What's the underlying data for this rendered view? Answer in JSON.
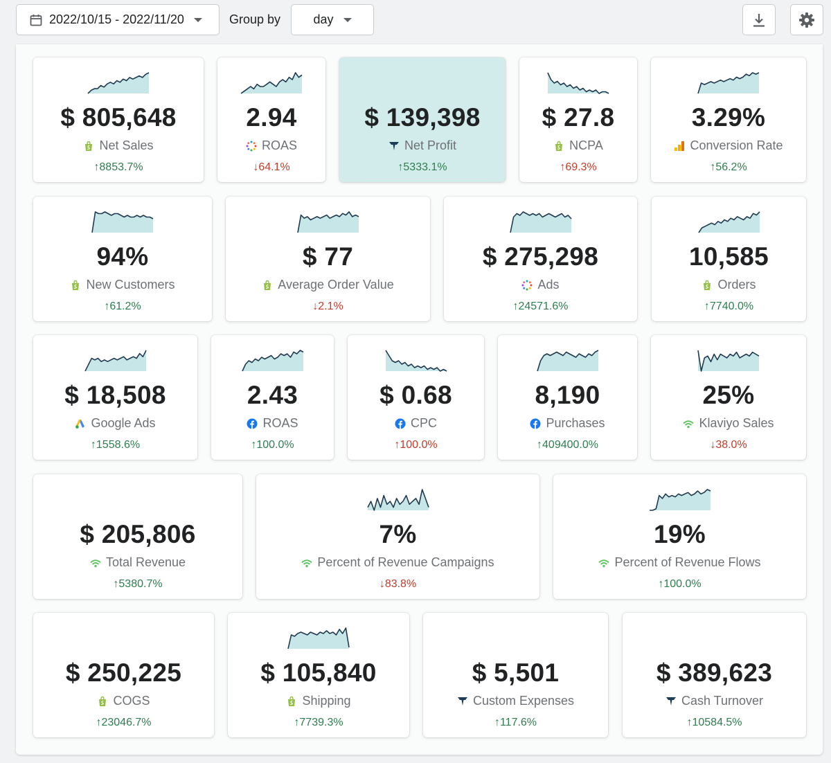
{
  "toolbar": {
    "date_range": "2022/10/15 - 2022/11/20",
    "group_by_label": "Group by",
    "group_by_value": "day",
    "download_icon": "download-icon",
    "settings_icon": "gear-icon"
  },
  "colors": {
    "positive": "#2e7d4f",
    "negative": "#c43b2a",
    "highlight": "#d1ecea",
    "spark_fill": "#c7e6e8",
    "spark_line": "#1f3a4f"
  },
  "cards": [
    {
      "value": "$ 805,648",
      "label": "Net Sales",
      "icon": "shopify-icon",
      "change": "↑8853.7%",
      "dir": "up",
      "spark": [
        2,
        4,
        5,
        5,
        7,
        6,
        8,
        9,
        8,
        10,
        9,
        11,
        10,
        12,
        11,
        12,
        13,
        12,
        14,
        15
      ],
      "highlight": false
    },
    {
      "value": "2.94",
      "label": "ROAS",
      "icon": "dots-ring-icon",
      "change": "↓64.1%",
      "dir": "down",
      "spark": [
        3,
        4,
        5,
        6,
        5,
        7,
        6,
        6,
        7,
        8,
        7,
        6,
        8,
        9,
        8,
        10,
        9,
        12,
        10,
        11
      ],
      "highlight": false
    },
    {
      "value": "$ 139,398",
      "label": "Net Profit",
      "icon": "triple-whale-icon",
      "change": "↑5333.1%",
      "dir": "up",
      "spark": [],
      "highlight": true
    },
    {
      "value": "$ 27.8",
      "label": "NCPA",
      "icon": "shopify-icon",
      "change": "↑69.3%",
      "dir": "down",
      "spark": [
        15,
        11,
        9,
        10,
        8,
        9,
        7,
        8,
        6,
        7,
        5,
        6,
        4,
        5,
        4,
        5,
        3,
        4,
        4,
        3
      ],
      "highlight": false
    },
    {
      "value": "3.29%",
      "label": "Conversion Rate",
      "icon": "bar-chart-icon",
      "change": "↑56.2%",
      "dir": "up",
      "spark": [
        2,
        9,
        8,
        9,
        10,
        9,
        10,
        11,
        10,
        11,
        12,
        11,
        13,
        12,
        13,
        15,
        14,
        16,
        15,
        16
      ],
      "highlight": false
    },
    {
      "value": "94%",
      "label": "New Customers",
      "icon": "shopify-icon",
      "change": "↑61.2%",
      "dir": "up",
      "spark": [
        2,
        14,
        13,
        13,
        14,
        13,
        12,
        13,
        13,
        12,
        11,
        12,
        11,
        11,
        12,
        11,
        12,
        11,
        11,
        10
      ],
      "highlight": false
    },
    {
      "value": "$ 77",
      "label": "Average Order Value",
      "icon": "shopify-icon",
      "change": "↓2.1%",
      "dir": "down",
      "spark": [
        2,
        13,
        11,
        12,
        10,
        11,
        12,
        11,
        12,
        13,
        11,
        12,
        13,
        12,
        14,
        13,
        15,
        12,
        13,
        12
      ],
      "highlight": false
    },
    {
      "value": "$ 275,298",
      "label": "Ads",
      "icon": "dots-ring-icon",
      "change": "↑24571.6%",
      "dir": "up",
      "spark": [
        2,
        11,
        13,
        12,
        14,
        13,
        12,
        13,
        12,
        13,
        11,
        12,
        13,
        12,
        11,
        12,
        13,
        11,
        12,
        10
      ],
      "highlight": false
    },
    {
      "value": "10,585",
      "label": "Orders",
      "icon": "shopify-icon",
      "change": "↑7740.0%",
      "dir": "up",
      "spark": [
        2,
        5,
        6,
        7,
        8,
        7,
        9,
        8,
        10,
        9,
        11,
        10,
        12,
        11,
        10,
        12,
        11,
        14,
        13,
        15
      ],
      "highlight": false
    },
    {
      "value": "$ 18,508",
      "label": "Google Ads",
      "icon": "google-ads-icon",
      "change": "↑1558.6%",
      "dir": "up",
      "spark": [
        2,
        6,
        10,
        9,
        10,
        8,
        9,
        8,
        9,
        10,
        9,
        10,
        11,
        9,
        10,
        11,
        10,
        13,
        11,
        15
      ],
      "highlight": false
    },
    {
      "value": "2.43",
      "label": "ROAS",
      "icon": "facebook-icon",
      "change": "↑100.0%",
      "dir": "up",
      "spark": [
        2,
        6,
        8,
        7,
        9,
        8,
        10,
        9,
        10,
        11,
        9,
        10,
        12,
        11,
        12,
        10,
        13,
        12,
        14,
        13
      ],
      "highlight": false
    },
    {
      "value": "$ 0.68",
      "label": "CPC",
      "icon": "facebook-icon",
      "change": "↑100.0%",
      "dir": "down",
      "spark": [
        15,
        12,
        9,
        8,
        9,
        7,
        8,
        6,
        7,
        5,
        6,
        5,
        6,
        4,
        5,
        4,
        5,
        3,
        4,
        3
      ],
      "highlight": false
    },
    {
      "value": "8,190",
      "label": "Purchases",
      "icon": "facebook-icon",
      "change": "↑409400.0%",
      "dir": "up",
      "spark": [
        2,
        8,
        11,
        12,
        11,
        12,
        13,
        12,
        11,
        13,
        12,
        11,
        10,
        12,
        11,
        10,
        12,
        11,
        13,
        14
      ],
      "highlight": false
    },
    {
      "value": "25%",
      "label": "Klaviyo Sales",
      "icon": "wifi-icon",
      "change": "↓38.0%",
      "dir": "down",
      "spark": [
        14,
        3,
        10,
        11,
        8,
        12,
        9,
        12,
        11,
        10,
        12,
        11,
        13,
        10,
        11,
        12,
        11,
        13,
        12,
        11
      ],
      "highlight": false
    },
    {
      "value": "$ 205,806",
      "label": "Total Revenue",
      "icon": "wifi-icon",
      "change": "↑5380.7%",
      "dir": "up",
      "spark": [],
      "highlight": false
    },
    {
      "value": "7%",
      "label": "Percent of Revenue Campaigns",
      "icon": "wifi-icon",
      "change": "↓83.8%",
      "dir": "down",
      "spark": [
        6,
        8,
        5,
        9,
        6,
        10,
        7,
        8,
        6,
        9,
        7,
        8,
        10,
        7,
        8,
        9,
        7,
        12,
        9,
        6
      ],
      "highlight": false
    },
    {
      "value": "19%",
      "label": "Percent of Revenue Flows",
      "icon": "wifi-icon",
      "change": "↑100.0%",
      "dir": "up",
      "spark": [
        2,
        2,
        3,
        12,
        10,
        13,
        11,
        12,
        11,
        13,
        12,
        13,
        14,
        12,
        13,
        15,
        13,
        14,
        16,
        15
      ],
      "highlight": false
    },
    {
      "value": "$ 250,225",
      "label": "COGS",
      "icon": "shopify-icon",
      "change": "↑23046.7%",
      "dir": "up",
      "spark": [],
      "highlight": false
    },
    {
      "value": "$ 105,840",
      "label": "Shipping",
      "icon": "shopify-icon",
      "change": "↑7739.3%",
      "dir": "up",
      "spark": [
        2,
        12,
        11,
        13,
        14,
        13,
        12,
        14,
        13,
        12,
        14,
        13,
        15,
        13,
        14,
        12,
        16,
        13,
        17,
        3
      ],
      "highlight": false
    },
    {
      "value": "$ 5,501",
      "label": "Custom Expenses",
      "icon": "triple-whale-icon",
      "change": "↑117.6%",
      "dir": "up",
      "spark": [],
      "highlight": false
    },
    {
      "value": "$ 389,623",
      "label": "Cash Turnover",
      "icon": "triple-whale-icon",
      "change": "↑10584.5%",
      "dir": "up",
      "spark": [],
      "highlight": false
    }
  ]
}
